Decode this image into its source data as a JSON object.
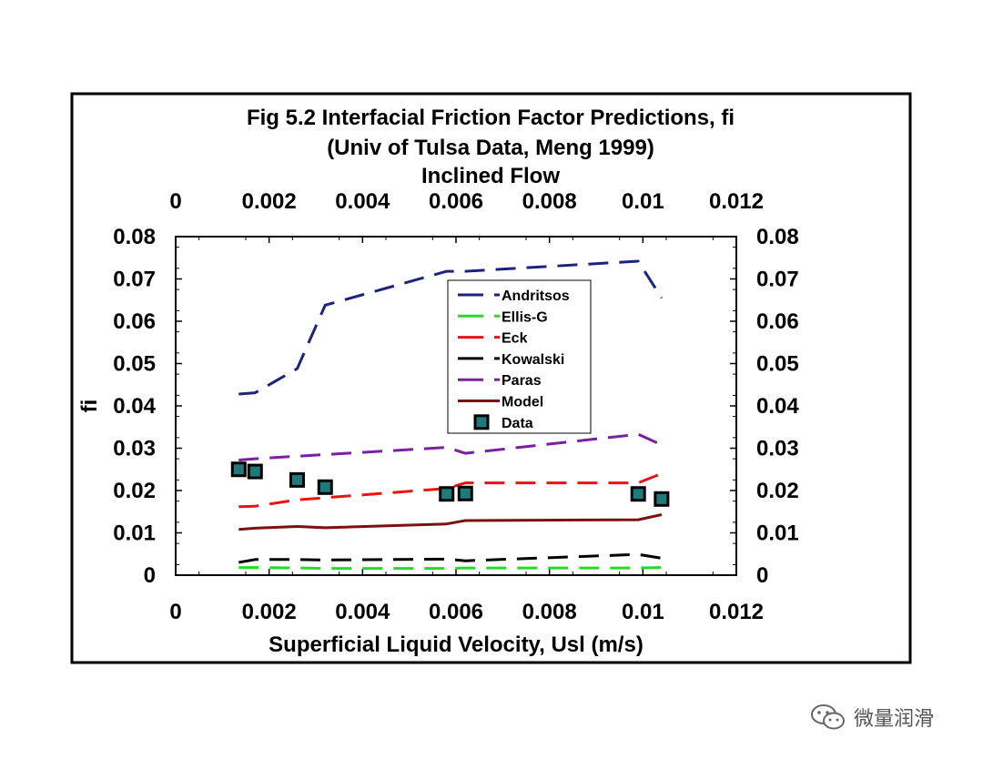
{
  "chart_data": {
    "type": "line",
    "title": [
      "Fig 5.2  Interfacial Friction Factor Predictions, fi",
      "(Univ of Tulsa Data, Meng 1999)",
      "Inclined Flow"
    ],
    "xlabel": "Superficial Liquid Velocity, Usl (m/s)",
    "ylabel": "fi",
    "xlim": [
      0,
      0.012
    ],
    "ylim": [
      0,
      0.08
    ],
    "x_tick_labels": [
      "0",
      "0.002",
      "0.004",
      "0.006",
      "0.008",
      "0.01",
      "0.012"
    ],
    "y_tick_labels": [
      "0",
      "0.01",
      "0.02",
      "0.03",
      "0.04",
      "0.05",
      "0.06",
      "0.07",
      "0.08"
    ],
    "top_axis": true,
    "right_axis": true,
    "grid": false,
    "legend_position": "center",
    "series": [
      {
        "name": "Andritsos",
        "style": "dashed",
        "color": "#1a237e",
        "x": [
          0.00135,
          0.0017,
          0.0026,
          0.0032,
          0.0058,
          0.0062,
          0.0099,
          0.0104
        ],
        "y": [
          0.0428,
          0.0431,
          0.0488,
          0.0638,
          0.0718,
          0.0718,
          0.0742,
          0.0655
        ]
      },
      {
        "name": "Ellis-G",
        "style": "dashed",
        "color": "#22dd22",
        "x": [
          0.00135,
          0.0017,
          0.0026,
          0.0032,
          0.0058,
          0.0062,
          0.0099,
          0.0104
        ],
        "y": [
          0.0018,
          0.0018,
          0.0017,
          0.0016,
          0.0016,
          0.0017,
          0.0017,
          0.0018
        ]
      },
      {
        "name": "Eck",
        "style": "dashed",
        "color": "#ee1111",
        "x": [
          0.00135,
          0.0017,
          0.0026,
          0.0032,
          0.0058,
          0.0062,
          0.0099,
          0.0104
        ],
        "y": [
          0.0162,
          0.0163,
          0.0178,
          0.0183,
          0.0205,
          0.0218,
          0.0218,
          0.024
        ]
      },
      {
        "name": "Kowalski",
        "style": "dashed",
        "color": "#000000",
        "x": [
          0.00135,
          0.0017,
          0.0026,
          0.0032,
          0.0058,
          0.0062,
          0.0099,
          0.0104
        ],
        "y": [
          0.003,
          0.0037,
          0.0037,
          0.0036,
          0.0038,
          0.0034,
          0.0049,
          0.004
        ]
      },
      {
        "name": "Paras",
        "style": "dashed",
        "color": "#7b1fa2",
        "x": [
          0.00135,
          0.0017,
          0.0026,
          0.0032,
          0.0058,
          0.0062,
          0.0099,
          0.0104
        ],
        "y": [
          0.0272,
          0.0275,
          0.0281,
          0.0285,
          0.0302,
          0.0288,
          0.0333,
          0.0308
        ]
      },
      {
        "name": "Model",
        "style": "solid",
        "color": "#7b1010",
        "x": [
          0.00135,
          0.0017,
          0.0026,
          0.0032,
          0.0058,
          0.0062,
          0.0099,
          0.0104
        ],
        "y": [
          0.0108,
          0.0111,
          0.0115,
          0.0112,
          0.0121,
          0.0129,
          0.0131,
          0.0143
        ]
      },
      {
        "name": "Data",
        "style": "markers",
        "color": "#000000",
        "marker_fill": "#1e7b7b",
        "x": [
          0.00135,
          0.0017,
          0.0026,
          0.0032,
          0.0058,
          0.0062,
          0.0099,
          0.0104
        ],
        "y": [
          0.025,
          0.0245,
          0.0225,
          0.0208,
          0.0192,
          0.0193,
          0.0192,
          0.018
        ]
      }
    ]
  },
  "watermark": {
    "text": "微量润滑",
    "icon": "wechat-icon"
  }
}
